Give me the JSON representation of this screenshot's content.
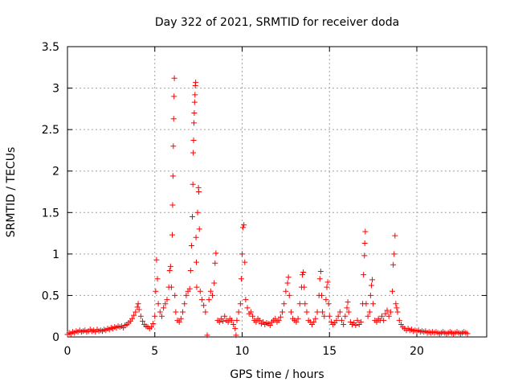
{
  "chart_data": {
    "type": "scatter",
    "title": "Day 322 of 2021, SRMTID for receiver doda",
    "xlabel": "GPS time / hours",
    "ylabel": "SRMTID / TECUs",
    "xlim": [
      0,
      24
    ],
    "ylim": [
      0,
      3.5
    ],
    "x_ticks": [
      0,
      5,
      10,
      15,
      20
    ],
    "x_tick_labels": [
      "0",
      "5",
      "10",
      "15",
      "20"
    ],
    "y_ticks": [
      0,
      0.5,
      1,
      1.5,
      2,
      2.5,
      3,
      3.5
    ],
    "y_tick_labels": [
      "0",
      "0.5",
      "1",
      "1.5",
      "2",
      "2.5",
      "3",
      "3.5"
    ],
    "grid": true,
    "marker": "+",
    "series": [
      {
        "name": "SRMTID",
        "color": "#ff0000",
        "points": [
          [
            0.0,
            0.03
          ],
          [
            0.1,
            0.05
          ],
          [
            0.2,
            0.04
          ],
          [
            0.3,
            0.06
          ],
          [
            0.4,
            0.05
          ],
          [
            0.5,
            0.07
          ],
          [
            0.6,
            0.06
          ],
          [
            0.7,
            0.08
          ],
          [
            0.8,
            0.06
          ],
          [
            0.9,
            0.07
          ],
          [
            1.0,
            0.08
          ],
          [
            1.1,
            0.06
          ],
          [
            1.2,
            0.07
          ],
          [
            1.3,
            0.09
          ],
          [
            1.4,
            0.07
          ],
          [
            1.5,
            0.08
          ],
          [
            1.6,
            0.06
          ],
          [
            1.7,
            0.09
          ],
          [
            1.8,
            0.07
          ],
          [
            1.9,
            0.08
          ],
          [
            2.0,
            0.07
          ],
          [
            2.1,
            0.09
          ],
          [
            2.2,
            0.08
          ],
          [
            2.3,
            0.1
          ],
          [
            2.4,
            0.09
          ],
          [
            2.5,
            0.11
          ],
          [
            2.6,
            0.1
          ],
          [
            2.7,
            0.12
          ],
          [
            2.8,
            0.11
          ],
          [
            2.9,
            0.13
          ],
          [
            3.0,
            0.12
          ],
          [
            3.1,
            0.13
          ],
          [
            3.2,
            0.11
          ],
          [
            3.3,
            0.14
          ],
          [
            3.4,
            0.15
          ],
          [
            3.5,
            0.17
          ],
          [
            3.6,
            0.19
          ],
          [
            3.7,
            0.22
          ],
          [
            3.8,
            0.26
          ],
          [
            3.9,
            0.3
          ],
          [
            4.0,
            0.36
          ],
          [
            4.05,
            0.4
          ],
          [
            4.1,
            0.33
          ],
          [
            4.2,
            0.25
          ],
          [
            4.3,
            0.19
          ],
          [
            4.4,
            0.15
          ],
          [
            4.5,
            0.13
          ],
          [
            4.6,
            0.12
          ],
          [
            4.7,
            0.1
          ],
          [
            4.8,
            0.12
          ],
          [
            4.9,
            0.16
          ],
          [
            5.0,
            0.25
          ],
          [
            5.05,
            0.55
          ],
          [
            5.1,
            0.93
          ],
          [
            5.15,
            0.7
          ],
          [
            5.2,
            0.4
          ],
          [
            5.3,
            0.3
          ],
          [
            5.4,
            0.25
          ],
          [
            5.5,
            0.35
          ],
          [
            5.6,
            0.4
          ],
          [
            5.7,
            0.45
          ],
          [
            5.8,
            0.6
          ],
          [
            5.85,
            0.8
          ],
          [
            5.9,
            0.85
          ],
          [
            5.95,
            0.6
          ],
          [
            6.0,
            1.23
          ],
          [
            6.02,
            1.59
          ],
          [
            6.04,
            1.94
          ],
          [
            6.06,
            2.3
          ],
          [
            6.08,
            2.63
          ],
          [
            6.1,
            2.9
          ],
          [
            6.12,
            3.12
          ],
          [
            6.15,
            0.5
          ],
          [
            6.2,
            0.3
          ],
          [
            6.3,
            0.2
          ],
          [
            6.4,
            0.18
          ],
          [
            6.5,
            0.22
          ],
          [
            6.6,
            0.3
          ],
          [
            6.7,
            0.4
          ],
          [
            6.8,
            0.5
          ],
          [
            6.9,
            0.55
          ],
          [
            7.0,
            0.58
          ],
          [
            7.05,
            0.8
          ],
          [
            7.1,
            1.1
          ],
          [
            7.15,
            1.45
          ],
          [
            7.18,
            1.84
          ],
          [
            7.2,
            2.22
          ],
          [
            7.22,
            2.37
          ],
          [
            7.24,
            2.58
          ],
          [
            7.26,
            2.7
          ],
          [
            7.28,
            2.83
          ],
          [
            7.3,
            2.92
          ],
          [
            7.32,
            3.03
          ],
          [
            7.34,
            3.07
          ],
          [
            7.36,
            1.2
          ],
          [
            7.38,
            0.9
          ],
          [
            7.4,
            0.6
          ],
          [
            7.45,
            1.5
          ],
          [
            7.5,
            1.8
          ],
          [
            7.52,
            1.75
          ],
          [
            7.55,
            1.3
          ],
          [
            7.6,
            0.55
          ],
          [
            7.7,
            0.45
          ],
          [
            7.8,
            0.38
          ],
          [
            7.9,
            0.3
          ],
          [
            8.0,
            0.02
          ],
          [
            8.1,
            0.45
          ],
          [
            8.2,
            0.55
          ],
          [
            8.3,
            0.5
          ],
          [
            8.4,
            0.65
          ],
          [
            8.45,
            0.89
          ],
          [
            8.5,
            1.01
          ],
          [
            8.6,
            0.2
          ],
          [
            8.7,
            0.18
          ],
          [
            8.8,
            0.22
          ],
          [
            8.9,
            0.19
          ],
          [
            9.0,
            0.25
          ],
          [
            9.1,
            0.2
          ],
          [
            9.2,
            0.18
          ],
          [
            9.3,
            0.22
          ],
          [
            9.4,
            0.2
          ],
          [
            9.5,
            0.15
          ],
          [
            9.6,
            0.1
          ],
          [
            9.65,
            0.02
          ],
          [
            9.7,
            0.2
          ],
          [
            9.8,
            0.3
          ],
          [
            9.9,
            0.4
          ],
          [
            9.95,
            0.7
          ],
          [
            10.0,
            1.0
          ],
          [
            10.05,
            1.32
          ],
          [
            10.1,
            1.35
          ],
          [
            10.15,
            0.9
          ],
          [
            10.2,
            0.45
          ],
          [
            10.3,
            0.35
          ],
          [
            10.4,
            0.28
          ],
          [
            10.5,
            0.3
          ],
          [
            10.6,
            0.25
          ],
          [
            10.7,
            0.2
          ],
          [
            10.8,
            0.18
          ],
          [
            10.9,
            0.22
          ],
          [
            11.0,
            0.2
          ],
          [
            11.1,
            0.16
          ],
          [
            11.2,
            0.18
          ],
          [
            11.3,
            0.15
          ],
          [
            11.4,
            0.17
          ],
          [
            11.5,
            0.16
          ],
          [
            11.6,
            0.14
          ],
          [
            11.7,
            0.18
          ],
          [
            11.8,
            0.2
          ],
          [
            11.9,
            0.22
          ],
          [
            12.0,
            0.18
          ],
          [
            12.1,
            0.2
          ],
          [
            12.2,
            0.24
          ],
          [
            12.3,
            0.3
          ],
          [
            12.4,
            0.4
          ],
          [
            12.5,
            0.55
          ],
          [
            12.6,
            0.65
          ],
          [
            12.65,
            0.72
          ],
          [
            12.7,
            0.5
          ],
          [
            12.8,
            0.3
          ],
          [
            12.9,
            0.22
          ],
          [
            13.0,
            0.2
          ],
          [
            13.1,
            0.18
          ],
          [
            13.2,
            0.22
          ],
          [
            13.3,
            0.4
          ],
          [
            13.4,
            0.6
          ],
          [
            13.45,
            0.75
          ],
          [
            13.5,
            0.78
          ],
          [
            13.55,
            0.6
          ],
          [
            13.6,
            0.4
          ],
          [
            13.7,
            0.3
          ],
          [
            13.8,
            0.2
          ],
          [
            13.9,
            0.18
          ],
          [
            14.0,
            0.15
          ],
          [
            14.1,
            0.18
          ],
          [
            14.2,
            0.22
          ],
          [
            14.3,
            0.3
          ],
          [
            14.4,
            0.5
          ],
          [
            14.45,
            0.7
          ],
          [
            14.5,
            0.79
          ],
          [
            14.55,
            0.5
          ],
          [
            14.6,
            0.3
          ],
          [
            14.7,
            0.25
          ],
          [
            14.8,
            0.45
          ],
          [
            14.85,
            0.6
          ],
          [
            14.9,
            0.66
          ],
          [
            14.95,
            0.4
          ],
          [
            15.0,
            0.25
          ],
          [
            15.1,
            0.18
          ],
          [
            15.2,
            0.15
          ],
          [
            15.3,
            0.17
          ],
          [
            15.4,
            0.2
          ],
          [
            15.5,
            0.25
          ],
          [
            15.6,
            0.3
          ],
          [
            15.7,
            0.2
          ],
          [
            15.8,
            0.15
          ],
          [
            15.9,
            0.25
          ],
          [
            16.0,
            0.35
          ],
          [
            16.05,
            0.42
          ],
          [
            16.1,
            0.3
          ],
          [
            16.2,
            0.18
          ],
          [
            16.3,
            0.15
          ],
          [
            16.4,
            0.17
          ],
          [
            16.5,
            0.14
          ],
          [
            16.6,
            0.2
          ],
          [
            16.7,
            0.15
          ],
          [
            16.8,
            0.18
          ],
          [
            16.9,
            0.4
          ],
          [
            16.95,
            0.75
          ],
          [
            17.0,
            0.98
          ],
          [
            17.02,
            1.13
          ],
          [
            17.05,
            1.27
          ],
          [
            17.1,
            0.4
          ],
          [
            17.2,
            0.25
          ],
          [
            17.3,
            0.3
          ],
          [
            17.35,
            0.5
          ],
          [
            17.4,
            0.62
          ],
          [
            17.45,
            0.69
          ],
          [
            17.5,
            0.4
          ],
          [
            17.6,
            0.2
          ],
          [
            17.7,
            0.18
          ],
          [
            17.8,
            0.22
          ],
          [
            17.9,
            0.2
          ],
          [
            18.0,
            0.25
          ],
          [
            18.1,
            0.2
          ],
          [
            18.2,
            0.28
          ],
          [
            18.3,
            0.32
          ],
          [
            18.4,
            0.25
          ],
          [
            18.5,
            0.3
          ],
          [
            18.6,
            0.55
          ],
          [
            18.65,
            0.87
          ],
          [
            18.7,
            1.0
          ],
          [
            18.75,
            1.22
          ],
          [
            18.8,
            0.4
          ],
          [
            18.85,
            0.35
          ],
          [
            18.9,
            0.3
          ],
          [
            19.0,
            0.2
          ],
          [
            19.1,
            0.15
          ],
          [
            19.2,
            0.12
          ],
          [
            19.3,
            0.1
          ],
          [
            19.4,
            0.08
          ],
          [
            19.5,
            0.1
          ],
          [
            19.6,
            0.08
          ],
          [
            19.7,
            0.09
          ],
          [
            19.8,
            0.07
          ],
          [
            19.9,
            0.08
          ],
          [
            20.0,
            0.07
          ],
          [
            20.1,
            0.08
          ],
          [
            20.2,
            0.06
          ],
          [
            20.3,
            0.07
          ],
          [
            20.4,
            0.06
          ],
          [
            20.5,
            0.07
          ],
          [
            20.6,
            0.05
          ],
          [
            20.7,
            0.06
          ],
          [
            20.8,
            0.05
          ],
          [
            20.9,
            0.06
          ],
          [
            21.0,
            0.05
          ],
          [
            21.1,
            0.06
          ],
          [
            21.2,
            0.05
          ],
          [
            21.3,
            0.04
          ],
          [
            21.4,
            0.05
          ],
          [
            21.5,
            0.06
          ],
          [
            21.6,
            0.05
          ],
          [
            21.7,
            0.04
          ],
          [
            21.8,
            0.05
          ],
          [
            21.9,
            0.06
          ],
          [
            22.0,
            0.05
          ],
          [
            22.1,
            0.04
          ],
          [
            22.2,
            0.05
          ],
          [
            22.3,
            0.06
          ],
          [
            22.4,
            0.05
          ],
          [
            22.5,
            0.04
          ],
          [
            22.6,
            0.05
          ],
          [
            22.7,
            0.06
          ],
          [
            22.8,
            0.05
          ],
          [
            22.9,
            0.04
          ]
        ]
      }
    ]
  }
}
